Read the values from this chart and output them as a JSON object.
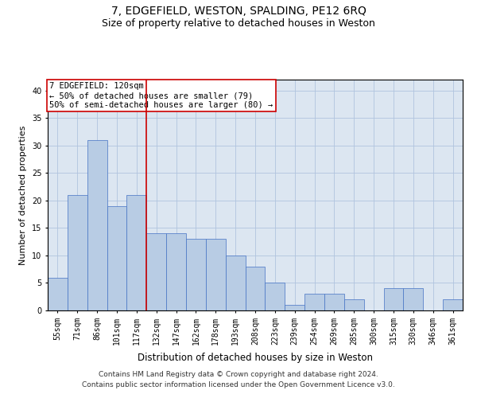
{
  "title": "7, EDGEFIELD, WESTON, SPALDING, PE12 6RQ",
  "subtitle": "Size of property relative to detached houses in Weston",
  "xlabel": "Distribution of detached houses by size in Weston",
  "ylabel": "Number of detached properties",
  "categories": [
    "55sqm",
    "71sqm",
    "86sqm",
    "101sqm",
    "117sqm",
    "132sqm",
    "147sqm",
    "162sqm",
    "178sqm",
    "193sqm",
    "208sqm",
    "223sqm",
    "239sqm",
    "254sqm",
    "269sqm",
    "285sqm",
    "300sqm",
    "315sqm",
    "330sqm",
    "346sqm",
    "361sqm"
  ],
  "values": [
    6,
    21,
    31,
    19,
    21,
    14,
    14,
    13,
    13,
    10,
    8,
    5,
    1,
    3,
    3,
    2,
    0,
    4,
    4,
    0,
    2
  ],
  "bar_color": "#b8cce4",
  "bar_edge_color": "#4472c4",
  "vline_x": 4.5,
  "vline_color": "#cc0000",
  "annotation_box_text": "7 EDGEFIELD: 120sqm\n← 50% of detached houses are smaller (79)\n50% of semi-detached houses are larger (80) →",
  "annotation_box_color": "#cc0000",
  "annotation_box_facecolor": "white",
  "ylim": [
    0,
    42
  ],
  "yticks": [
    0,
    5,
    10,
    15,
    20,
    25,
    30,
    35,
    40
  ],
  "grid_color": "#b0c4de",
  "background_color": "#dce6f1",
  "footnote": "Contains HM Land Registry data © Crown copyright and database right 2024.\nContains public sector information licensed under the Open Government Licence v3.0.",
  "title_fontsize": 10,
  "subtitle_fontsize": 9,
  "xlabel_fontsize": 8.5,
  "ylabel_fontsize": 8,
  "tick_fontsize": 7,
  "annotation_fontsize": 7.5,
  "footnote_fontsize": 6.5
}
